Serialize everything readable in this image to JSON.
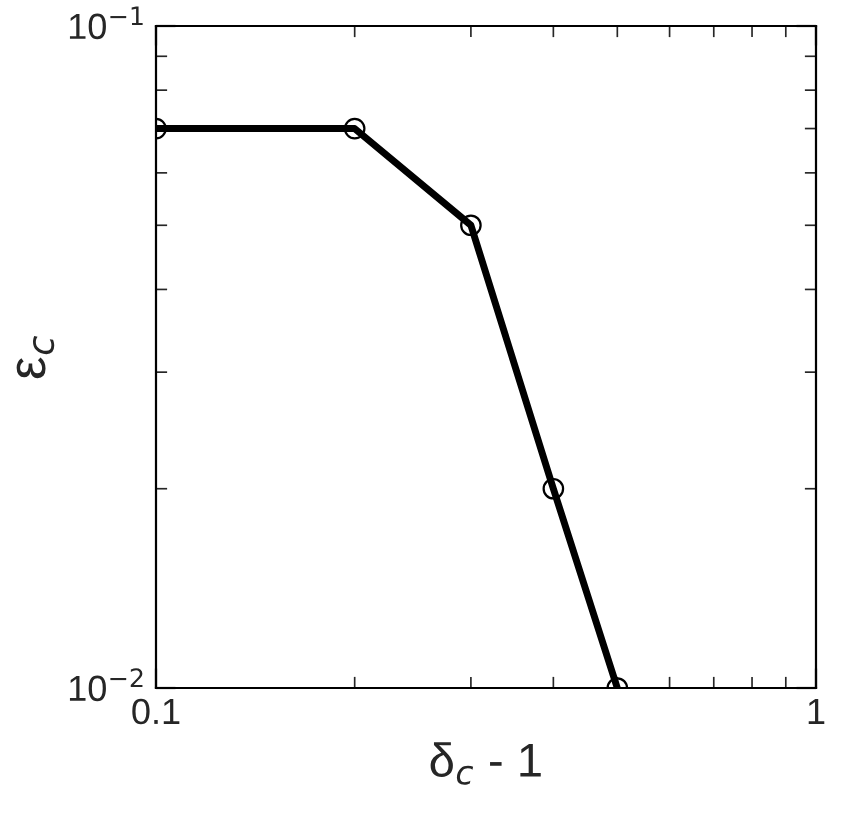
{
  "chart_data": {
    "type": "line",
    "xlabel": "δ$_{c}$ - 1",
    "ylabel": "ε$_{c}$",
    "log": "xy",
    "x": [
      0.1,
      0.2,
      0.3,
      0.4,
      0.5
    ],
    "series": [
      {
        "color": "#000000",
        "values": [
          0.07,
          0.07,
          0.05,
          0.02,
          0.01
        ]
      }
    ],
    "xlim": [
      0.1,
      1
    ],
    "xticks": [
      0.1,
      1
    ],
    "ylim": [
      0.01,
      0.1
    ],
    "yticks": [
      {
        "value": 0.01,
        "label": "10$^{−2}$"
      },
      {
        "value": 0.1,
        "label": "10$^{−1}$"
      }
    ],
    "marker": "circle",
    "line_style": "solid",
    "grid": false,
    "legend": false
  }
}
